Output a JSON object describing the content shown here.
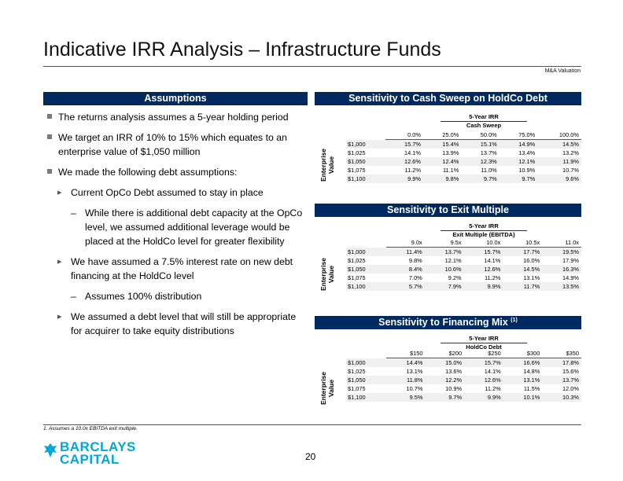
{
  "page": {
    "title": "Indicative IRR Analysis – Infrastructure Funds",
    "tag": "M&A Valuation",
    "page_number": "20",
    "footnote": "1.   Assumes a 10.0x EBITDA exit multiple.",
    "logo": {
      "line1": "BARCLAYS",
      "line2": "CAPITAL",
      "icon": "eagle-icon"
    }
  },
  "assumptions": {
    "header": "Assumptions",
    "b1": "The returns analysis assumes a 5-year holding period",
    "b2": "We target an IRR of 10% to 15% which equates to an enterprise value of $1,050 million",
    "b3": "We made the following debt assumptions:",
    "b3a": "Current OpCo Debt assumed to stay in place",
    "b3a_sub_dash": "–",
    "b3a_sub": "While there is additional debt capacity at the OpCo level, we assumed additional leverage would be placed at the HoldCo level for greater flexibility",
    "b3b": "We have assumed a 7.5% interest rate on new debt financing at the HoldCo level",
    "b3b_sub_dash": "–",
    "b3b_sub": "Assumes 100% distribution",
    "b3c": "We assumed a debt level that will still be appropriate for acquirer to take equity distributions"
  },
  "tables": {
    "cash_sweep": {
      "header": "Sensitivity to Cash Sweep on HoldCo Debt",
      "super_title": "5-Year IRR",
      "sub_title": "Cash Sweep",
      "row_label": "Enterprise Value",
      "columns": [
        "0.0%",
        "25.0%",
        "50.0%",
        "75.0%",
        "100.0%"
      ],
      "rows": [
        {
          "ev": "$1,000",
          "values": [
            "15.7%",
            "15.4%",
            "15.1%",
            "14.9%",
            "14.5%"
          ]
        },
        {
          "ev": "$1,025",
          "values": [
            "14.1%",
            "13.9%",
            "13.7%",
            "13.4%",
            "13.2%"
          ]
        },
        {
          "ev": "$1,050",
          "values": [
            "12.6%",
            "12.4%",
            "12.3%",
            "12.1%",
            "11.9%"
          ]
        },
        {
          "ev": "$1,075",
          "values": [
            "11.2%",
            "11.1%",
            "11.0%",
            "10.9%",
            "10.7%"
          ]
        },
        {
          "ev": "$1,100",
          "values": [
            "9.9%",
            "9.8%",
            "9.7%",
            "9.7%",
            "9.6%"
          ]
        }
      ]
    },
    "exit_multiple": {
      "header": "Sensitivity to Exit Multiple",
      "super_title": "5-Year IRR",
      "sub_title": "Exit Multiple (EBITDA)",
      "row_label": "Enterprise Value",
      "columns": [
        "9.0x",
        "9.5x",
        "10.0x",
        "10.5x",
        "11.0x"
      ],
      "rows": [
        {
          "ev": "$1,000",
          "values": [
            "11.4%",
            "13.7%",
            "15.7%",
            "17.7%",
            "19.5%"
          ]
        },
        {
          "ev": "$1,025",
          "values": [
            "9.8%",
            "12.1%",
            "14.1%",
            "16.0%",
            "17.9%"
          ]
        },
        {
          "ev": "$1,050",
          "values": [
            "8.4%",
            "10.6%",
            "12.6%",
            "14.5%",
            "16.3%"
          ]
        },
        {
          "ev": "$1,075",
          "values": [
            "7.0%",
            "9.2%",
            "11.2%",
            "13.1%",
            "14.9%"
          ]
        },
        {
          "ev": "$1,100",
          "values": [
            "5.7%",
            "7.9%",
            "9.9%",
            "11.7%",
            "13.5%"
          ]
        }
      ]
    },
    "financing_mix": {
      "header": "Sensitivity to Financing Mix",
      "header_sup": "(1)",
      "super_title": "5-Year IRR",
      "sub_title": "HoldCo Debt",
      "row_label": "Enterprise Value",
      "columns": [
        "$150",
        "$200",
        "$250",
        "$300",
        "$350"
      ],
      "rows": [
        {
          "ev": "$1,000",
          "values": [
            "14.4%",
            "15.0%",
            "15.7%",
            "16.6%",
            "17.8%"
          ]
        },
        {
          "ev": "$1,025",
          "values": [
            "13.1%",
            "13.6%",
            "14.1%",
            "14.8%",
            "15.6%"
          ]
        },
        {
          "ev": "$1,050",
          "values": [
            "11.8%",
            "12.2%",
            "12.6%",
            "13.1%",
            "13.7%"
          ]
        },
        {
          "ev": "$1,075",
          "values": [
            "10.7%",
            "10.9%",
            "11.2%",
            "11.5%",
            "12.0%"
          ]
        },
        {
          "ev": "$1,100",
          "values": [
            "9.5%",
            "9.7%",
            "9.9%",
            "10.1%",
            "10.3%"
          ]
        }
      ]
    }
  }
}
